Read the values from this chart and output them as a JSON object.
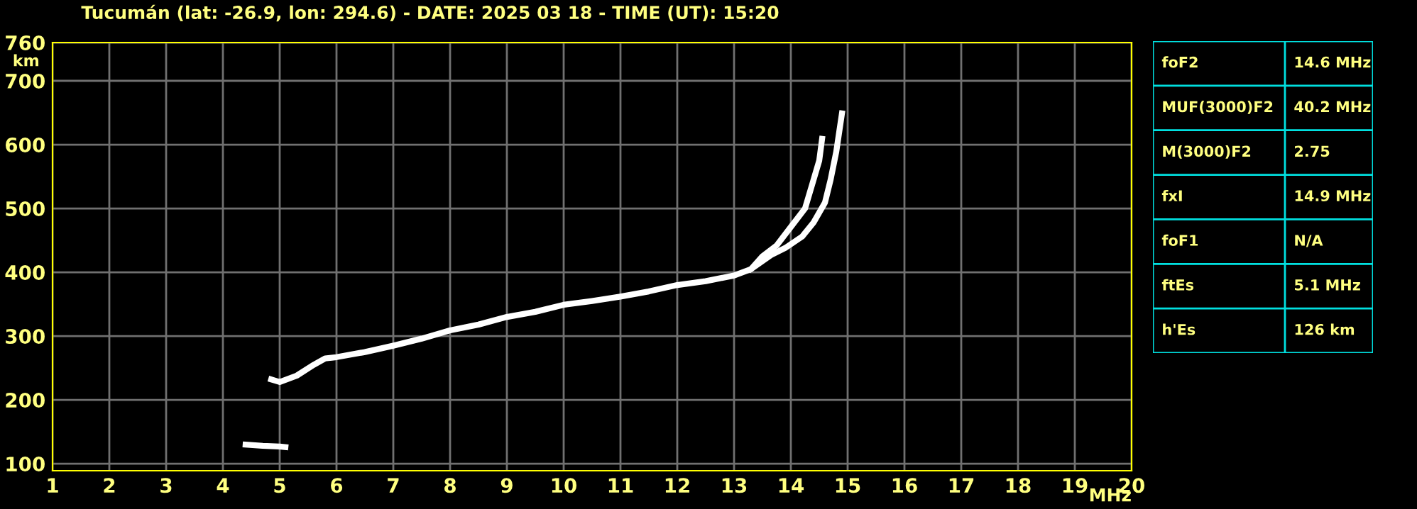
{
  "chart_data": [
    {
      "type": "line",
      "title": "Tucumán (lat: -26.9, lon: 294.6) - DATE: 2025 03 18 - TIME (UT): 15:20",
      "xlabel": "MHz",
      "ylabel": "km",
      "xlim": [
        1,
        20
      ],
      "ylim": [
        89,
        760
      ],
      "xticks": [
        1,
        2,
        3,
        4,
        5,
        6,
        7,
        8,
        9,
        10,
        11,
        12,
        13,
        14,
        15,
        16,
        17,
        18,
        19,
        20
      ],
      "yticks": [
        100,
        200,
        300,
        400,
        500,
        600,
        700,
        760
      ],
      "grid": true,
      "marker": "none",
      "line_style": "solid",
      "series": [
        {
          "color": "#ffffff",
          "x": [
            4.85,
            5.0,
            5.3,
            5.6,
            5.8,
            6.0,
            6.5,
            7.0,
            7.5,
            8.0,
            8.5,
            9.0,
            9.5,
            10.0,
            10.5,
            11.0,
            11.5,
            12.0,
            12.5,
            13.0,
            13.3,
            13.5,
            13.75,
            14.0,
            14.25,
            14.4,
            14.5,
            14.55
          ],
          "values": [
            232,
            228,
            238,
            255,
            265,
            267,
            275,
            285,
            296,
            309,
            318,
            330,
            338,
            349,
            355,
            362,
            370,
            380,
            386,
            395,
            405,
            425,
            442,
            471,
            500,
            545,
            575,
            609
          ]
        },
        {
          "color": "#ffffff",
          "x": [
            13.3,
            13.65,
            13.9,
            14.2,
            14.4,
            14.6,
            14.7,
            14.8,
            14.9
          ],
          "values": [
            405,
            427,
            438,
            456,
            478,
            509,
            545,
            589,
            649
          ]
        },
        {
          "color": "#ffffff",
          "x": [
            4.4,
            4.7,
            5.0,
            5.1
          ],
          "values": [
            130,
            128,
            127,
            126
          ]
        }
      ]
    },
    {
      "type": "other",
      "annotations": [
        "foF2",
        "14.6 MHz",
        "MUF(3000)F2",
        "40.2 MHz",
        "M(3000)F2",
        "2.75",
        "fxI",
        "14.9 MHz",
        "foF1",
        "N/A",
        "ftEs",
        "5.1 MHz",
        "h'Es",
        "126 km"
      ]
    }
  ]
}
